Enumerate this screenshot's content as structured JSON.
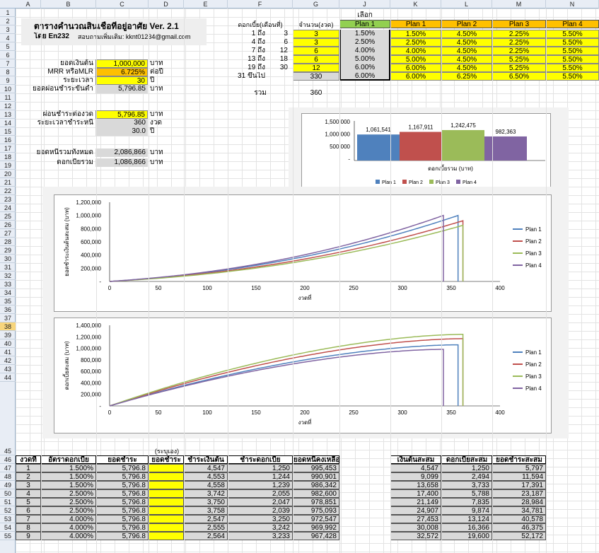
{
  "columns": [
    "A",
    "B",
    "C",
    "D",
    "E",
    "F",
    "G",
    "J",
    "K",
    "L",
    "M",
    "N"
  ],
  "rows": [
    "1",
    "2",
    "3",
    "4",
    "5",
    "6",
    "7",
    "8",
    "9",
    "10",
    "11",
    "12",
    "13",
    "14",
    "15",
    "16",
    "17",
    "18",
    "19",
    "20",
    "21",
    "22",
    "23",
    "24",
    "25",
    "26",
    "27",
    "28",
    "29",
    "30",
    "31",
    "32",
    "33",
    "34",
    "35",
    "36",
    "37",
    "38",
    "39",
    "40",
    "41",
    "42",
    "43",
    "44",
    "45",
    "46",
    "47",
    "48",
    "49",
    "50",
    "51",
    "52",
    "53",
    "54",
    "55"
  ],
  "selected_row": "38",
  "title": {
    "line1": "ตารางคำนวณสินเชื่อที่อยู่อาศัย",
    "version": "Ver. 2.1",
    "author": "โดย En232",
    "contact": "สอบถามเพิ่มเติม: kknt01234@gmail.com"
  },
  "inputs": {
    "loan_label": "ยอดเงินต้น",
    "loan_value": "1,000,000",
    "loan_unit": "บาท",
    "mrr_label": "MRR หรือMLR",
    "mrr_value": "6.725%",
    "mrr_unit": "ต่อปี",
    "term_label": "ระยะเวลา",
    "term_value": "30",
    "term_unit": "ปี",
    "min_label": "ยอดผ่อนชำระขั้นต่ำ",
    "min_value": "5,796.85",
    "min_unit": "บาท",
    "pay_label": "ผ่อนชำระต่องวด",
    "pay_value": "5,796.85",
    "pay_unit": "บาท",
    "period_label": "ระยะเวลาชำระหนี้",
    "period_value": "360",
    "period_unit": "งวด",
    "years_value": "30.0",
    "years_unit": "ปี",
    "total_label": "ยอดหนี้รวมทั้งหมด",
    "total_value": "2,086,866",
    "total_unit": "บาท",
    "interest_label": "ดอกเบี้ยรวม",
    "interest_value": "1,086,866",
    "interest_unit": "บาท"
  },
  "rate_table": {
    "hdr_period": "ดอกเบี้ย(เดือนที่)",
    "hdr_count": "จำนวน(งวด)",
    "hdr_select": "เลือก",
    "plans": [
      "Plan 1",
      "Plan 1",
      "Plan 2",
      "Plan 3",
      "Plan 4"
    ],
    "rows": [
      {
        "a": "1 ถึง",
        "b": "3",
        "n": "3",
        "sel": "1.50%",
        "p1": "1.50%",
        "p2": "4.50%",
        "p3": "2.25%",
        "p4": "5.50%"
      },
      {
        "a": "4 ถึง",
        "b": "6",
        "n": "3",
        "sel": "2.50%",
        "p1": "2.50%",
        "p2": "4.50%",
        "p3": "2.25%",
        "p4": "5.50%"
      },
      {
        "a": "7 ถึง",
        "b": "12",
        "n": "6",
        "sel": "4.00%",
        "p1": "4.00%",
        "p2": "4.50%",
        "p3": "2.25%",
        "p4": "5.50%"
      },
      {
        "a": "13 ถึง",
        "b": "18",
        "n": "6",
        "sel": "5.00%",
        "p1": "5.00%",
        "p2": "4.50%",
        "p3": "5.25%",
        "p4": "5.50%"
      },
      {
        "a": "19 ถึง",
        "b": "30",
        "n": "12",
        "sel": "6.00%",
        "p1": "6.00%",
        "p2": "4.50%",
        "p3": "5.25%",
        "p4": "5.50%"
      },
      {
        "a": "31 ขึ้นไป",
        "b": "",
        "n": "330",
        "sel": "6.00%",
        "p1": "6.00%",
        "p2": "6.25%",
        "p3": "6.50%",
        "p4": "5.50%"
      }
    ],
    "sum_label": "รวม",
    "sum_value": "360"
  },
  "colors": {
    "plan1": "#4f81bd",
    "plan2": "#c0504d",
    "plan3": "#9bbb59",
    "plan4": "#8064a2"
  },
  "chart_data": [
    {
      "type": "bar",
      "categories": [
        "Plan 1",
        "Plan 2",
        "Plan 3",
        "Plan 4"
      ],
      "values": [
        1061541,
        1167911,
        1242475,
        982363
      ],
      "value_labels": [
        "1,061,541",
        "1,167,911",
        "1,242,475",
        "982,363"
      ],
      "xlabel": "ดอกเบี้ยรวม (บาท)",
      "yticks": [
        "1,500,000",
        "1,000,000",
        "500,000",
        "-"
      ],
      "ylim": [
        0,
        1500000
      ],
      "legend": "bottom"
    },
    {
      "type": "line",
      "xlabel": "งวดที่",
      "ylabel": "ยอดชำระเงินต้นสะสม (บาท)",
      "xlim": [
        0,
        400
      ],
      "ylim": [
        0,
        1200000
      ],
      "xticks": [
        "0",
        "50",
        "100",
        "150",
        "200",
        "250",
        "300",
        "350",
        "400"
      ],
      "yticks": [
        "1,200,000",
        "1,000,000",
        "800,000",
        "600,000",
        "400,000",
        "200,000",
        "-"
      ],
      "series": [
        {
          "name": "Plan 1",
          "end": 357,
          "final": 1000000,
          "k": 1.0
        },
        {
          "name": "Plan 2",
          "end": 362,
          "final": 920000,
          "k": 1.0
        },
        {
          "name": "Plan 3",
          "end": 362,
          "final": 850000,
          "k": 1.0
        },
        {
          "name": "Plan 4",
          "end": 342,
          "final": 1000000,
          "k": 1.0
        }
      ],
      "legend": "right"
    },
    {
      "type": "line",
      "xlabel": "งวดที่",
      "ylabel": "ดอกเบี้ยสะสม (บาท)",
      "xlim": [
        0,
        400
      ],
      "ylim": [
        0,
        1400000
      ],
      "xticks": [
        "0",
        "50",
        "100",
        "150",
        "200",
        "250",
        "300",
        "350",
        "400"
      ],
      "yticks": [
        "1,400,000",
        "1,200,000",
        "1,000,000",
        "800,000",
        "600,000",
        "400,000",
        "200,000",
        "-"
      ],
      "series": [
        {
          "name": "Plan 1",
          "end": 357,
          "final": 1061541
        },
        {
          "name": "Plan 2",
          "end": 362,
          "final": 1167911
        },
        {
          "name": "Plan 3",
          "end": 362,
          "final": 1242475
        },
        {
          "name": "Plan 4",
          "end": 342,
          "final": 982363
        }
      ],
      "legend": "right"
    }
  ],
  "schedule": {
    "note": "(ระบุเอง)",
    "headers": [
      "งวดที่",
      "อัตราดอกเบี้ย",
      "ยอดชำระ",
      "ยอดชำระ",
      "ชำระเงินต้น",
      "ชำระดอกเบี้ย",
      "ยอดหนี้คงเหลือ"
    ],
    "rows": [
      [
        "1",
        "1.500%",
        "5,796.8",
        "",
        "4,547",
        "1,250",
        "995,453"
      ],
      [
        "2",
        "1.500%",
        "5,796.8",
        "",
        "4,553",
        "1,244",
        "990,901"
      ],
      [
        "3",
        "1.500%",
        "5,796.8",
        "",
        "4,558",
        "1,239",
        "986,342"
      ],
      [
        "4",
        "2.500%",
        "5,796.8",
        "",
        "3,742",
        "2,055",
        "982,600"
      ],
      [
        "5",
        "2.500%",
        "5,796.8",
        "",
        "3,750",
        "2,047",
        "978,851"
      ],
      [
        "6",
        "2.500%",
        "5,796.8",
        "",
        "3,758",
        "2,039",
        "975,093"
      ],
      [
        "7",
        "4.000%",
        "5,796.8",
        "",
        "2,547",
        "3,250",
        "972,547"
      ],
      [
        "8",
        "4.000%",
        "5,796.8",
        "",
        "2,555",
        "3,242",
        "969,992"
      ],
      [
        "9",
        "4.000%",
        "5,796.8",
        "",
        "2,564",
        "3,233",
        "967,428"
      ]
    ],
    "cum_headers": [
      "เงินต้นสะสม",
      "ดอกเบี้ยสะสม",
      "ยอดชำระสะสม"
    ],
    "cum_rows": [
      [
        "4,547",
        "1,250",
        "5,797"
      ],
      [
        "9,099",
        "2,494",
        "11,594"
      ],
      [
        "13,658",
        "3,733",
        "17,391"
      ],
      [
        "17,400",
        "5,788",
        "23,187"
      ],
      [
        "21,149",
        "7,835",
        "28,984"
      ],
      [
        "24,907",
        "9,874",
        "34,781"
      ],
      [
        "27,453",
        "13,124",
        "40,578"
      ],
      [
        "30,008",
        "16,366",
        "46,375"
      ],
      [
        "32,572",
        "19,600",
        "52,172"
      ]
    ]
  }
}
